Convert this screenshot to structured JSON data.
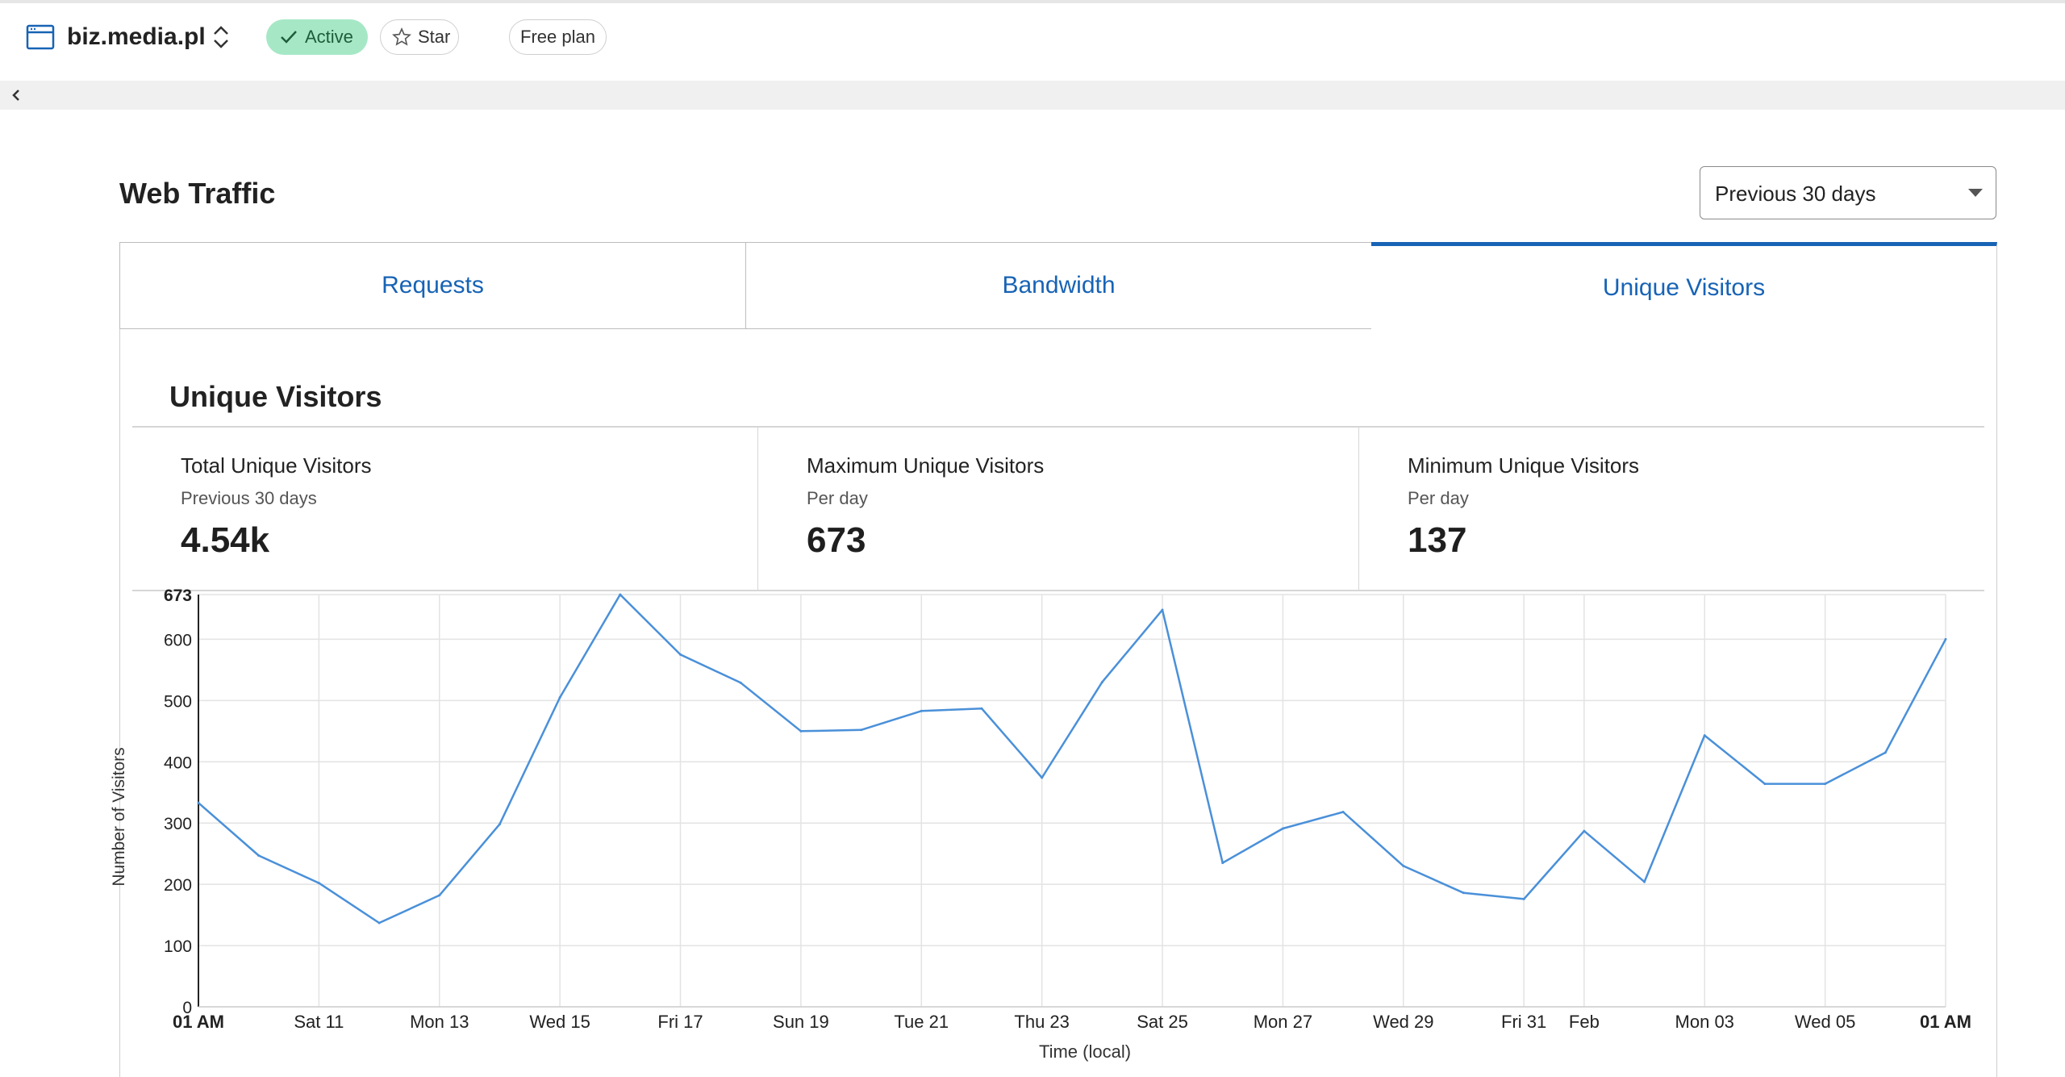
{
  "header": {
    "site_name": "biz.media.pl",
    "status": "Active",
    "star_label": "Star",
    "plan": "Free plan",
    "icons": [
      "browser-window-icon",
      "up-down-chevron-icon",
      "check-icon",
      "star-icon"
    ]
  },
  "page": {
    "title": "Web Traffic",
    "range": "Previous 30 days"
  },
  "tabs": [
    {
      "label": "Requests",
      "active": false
    },
    {
      "label": "Bandwidth",
      "active": false
    },
    {
      "label": "Unique Visitors",
      "active": true
    }
  ],
  "section": {
    "title": "Unique Visitors",
    "stats": [
      {
        "label": "Total Unique Visitors",
        "sub": "Previous 30 days",
        "value": "4.54k"
      },
      {
        "label": "Maximum Unique Visitors",
        "sub": "Per day",
        "value": "673"
      },
      {
        "label": "Minimum Unique Visitors",
        "sub": "Per day",
        "value": "137"
      }
    ]
  },
  "colors": {
    "accent": "#1763b5",
    "line": "#4a90d9",
    "active_pill": "#a6e8c6"
  },
  "chart_data": {
    "type": "line",
    "xlabel": "Time (local)",
    "ylabel": "Number of Visitors",
    "ylim": [
      0,
      673
    ],
    "y_ticks": [
      0,
      100,
      200,
      300,
      400,
      500,
      600,
      673
    ],
    "y_tick_labels": [
      "0",
      "100",
      "200",
      "300",
      "400",
      "500",
      "600",
      "673"
    ],
    "x_ticks": [
      {
        "index": 0,
        "label": "01 AM",
        "bold": true
      },
      {
        "index": 2,
        "label": "Sat 11",
        "bold": false
      },
      {
        "index": 4,
        "label": "Mon 13",
        "bold": false
      },
      {
        "index": 6,
        "label": "Wed 15",
        "bold": false
      },
      {
        "index": 8,
        "label": "Fri 17",
        "bold": false
      },
      {
        "index": 10,
        "label": "Sun 19",
        "bold": false
      },
      {
        "index": 12,
        "label": "Tue 21",
        "bold": false
      },
      {
        "index": 14,
        "label": "Thu 23",
        "bold": false
      },
      {
        "index": 16,
        "label": "Sat 25",
        "bold": false
      },
      {
        "index": 18,
        "label": "Mon 27",
        "bold": false
      },
      {
        "index": 20,
        "label": "Wed 29",
        "bold": false
      },
      {
        "index": 22,
        "label": "Fri 31",
        "bold": false
      },
      {
        "index": 23,
        "label": "Feb",
        "bold": false
      },
      {
        "index": 25,
        "label": "Mon 03",
        "bold": false
      },
      {
        "index": 27,
        "label": "Wed 05",
        "bold": false
      },
      {
        "index": 29,
        "label": "01 AM",
        "bold": true
      }
    ],
    "grid": true,
    "legend": "none",
    "series": [
      {
        "values": [
          333,
          247,
          202,
          137,
          182,
          298,
          505,
          673,
          575,
          529,
          450,
          452,
          483,
          487,
          374,
          530,
          648,
          235,
          291,
          318,
          230,
          186,
          176,
          287,
          204,
          443,
          364,
          364,
          415,
          600
        ]
      }
    ]
  }
}
